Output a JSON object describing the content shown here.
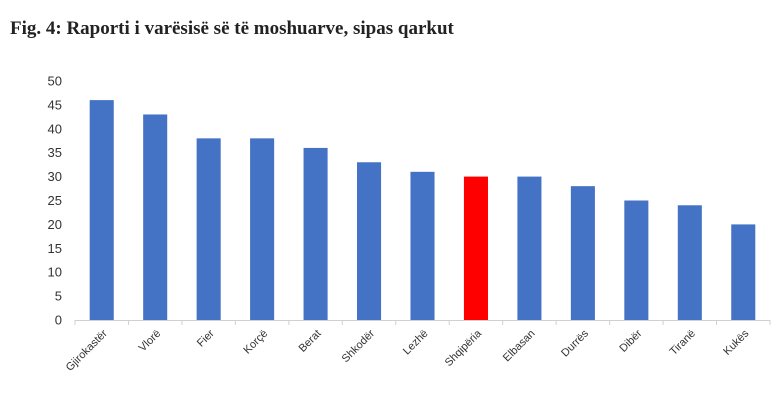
{
  "chart_data": {
    "type": "bar",
    "title": "Fig. 4: Raporti i varësisë së të moshuarve, sipas qarkut",
    "categories": [
      "Gjirokastër",
      "Vlorë",
      "Fier",
      "Korçë",
      "Berat",
      "Shkodër",
      "Lezhë",
      "Shqipëria",
      "Elbasan",
      "Durrës",
      "Dibër",
      "Tiranë",
      "Kukës"
    ],
    "values": [
      46,
      43,
      38,
      38,
      36,
      33,
      31,
      30,
      30,
      28,
      25,
      24,
      20
    ],
    "ylim": [
      0,
      50
    ],
    "yticks": [
      0,
      5,
      10,
      15,
      20,
      25,
      30,
      35,
      40,
      45,
      50
    ],
    "grid": false,
    "colors": {
      "default": "#4472C4",
      "highlight": "#FF0000",
      "highlight_category": "Shqipëria"
    }
  }
}
